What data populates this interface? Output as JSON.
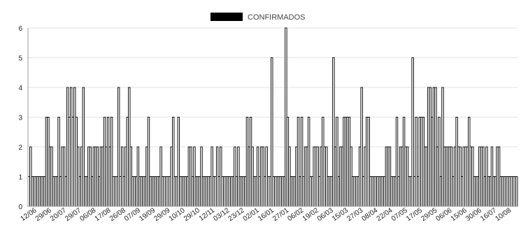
{
  "chart_data": {
    "type": "bar",
    "legend": {
      "label": "CONFIRMADOS",
      "color": "#000000",
      "position": "top"
    },
    "ylim": [
      0,
      6
    ],
    "y_ticks": [
      "0",
      "1",
      "2",
      "3",
      "4",
      "5",
      "6"
    ],
    "grid": true,
    "bar_color": "#000000",
    "bar_fill": "#f2f2f2",
    "x_tick_labels": [
      "12/06",
      "29/06",
      "20/07",
      "29/07",
      "06/08",
      "17/08",
      "26/08",
      "07/09",
      "19/09",
      "29/09",
      "10/10",
      "29/10",
      "12/11",
      "03/12",
      "23/12",
      "02/01",
      "16/01",
      "27/01",
      "06/02",
      "19/02",
      "06/03",
      "15/03",
      "27/03",
      "08/04",
      "22/04",
      "07/05",
      "17/05",
      "29/05",
      "06/06",
      "15/06",
      "30/06",
      "16/07",
      "10/08"
    ],
    "values": [
      1,
      2,
      1,
      1,
      1,
      1,
      1,
      1,
      1,
      1,
      3,
      3,
      2,
      2,
      1,
      1,
      1,
      3,
      1,
      2,
      2,
      1,
      4,
      3,
      4,
      3,
      4,
      3,
      2,
      1,
      2,
      4,
      1,
      1,
      2,
      2,
      1,
      2,
      2,
      2,
      1,
      2,
      2,
      3,
      2,
      3,
      2,
      3,
      1,
      1,
      1,
      4,
      1,
      2,
      1,
      2,
      3,
      4,
      2,
      1,
      1,
      1,
      2,
      1,
      1,
      1,
      1,
      2,
      3,
      1,
      1,
      1,
      1,
      1,
      1,
      2,
      1,
      1,
      1,
      1,
      1,
      2,
      3,
      1,
      1,
      3,
      1,
      1,
      1,
      1,
      1,
      2,
      2,
      1,
      2,
      1,
      1,
      1,
      2,
      1,
      1,
      1,
      1,
      1,
      2,
      1,
      1,
      2,
      1,
      2,
      1,
      1,
      1,
      1,
      1,
      1,
      1,
      2,
      1,
      2,
      1,
      1,
      1,
      1,
      3,
      2,
      3,
      2,
      1,
      1,
      2,
      1,
      2,
      2,
      1,
      2,
      1,
      1,
      5,
      1,
      1,
      1,
      1,
      1,
      1,
      1,
      6,
      3,
      2,
      1,
      1,
      1,
      2,
      3,
      1,
      3,
      1,
      2,
      2,
      3,
      1,
      1,
      2,
      2,
      2,
      1,
      2,
      3,
      2,
      2,
      1,
      1,
      1,
      5,
      2,
      3,
      1,
      2,
      2,
      3,
      3,
      3,
      3,
      2,
      1,
      1,
      1,
      1,
      2,
      4,
      1,
      2,
      3,
      3,
      1,
      1,
      1,
      1,
      1,
      1,
      1,
      1,
      1,
      2,
      2,
      2,
      1,
      1,
      1,
      3,
      1,
      2,
      2,
      3,
      2,
      2,
      1,
      1,
      5,
      1,
      3,
      1,
      3,
      3,
      3,
      2,
      2,
      4,
      4,
      3,
      4,
      4,
      2,
      3,
      1,
      4,
      2,
      2,
      2,
      2,
      2,
      1,
      2,
      3,
      2,
      2,
      1,
      2,
      2,
      2,
      3,
      2,
      2,
      1,
      1,
      1,
      2,
      2,
      2,
      1,
      2,
      1,
      1,
      2,
      1,
      1,
      2,
      2,
      1,
      1,
      1,
      1,
      1,
      1,
      1,
      1,
      1,
      1
    ]
  }
}
